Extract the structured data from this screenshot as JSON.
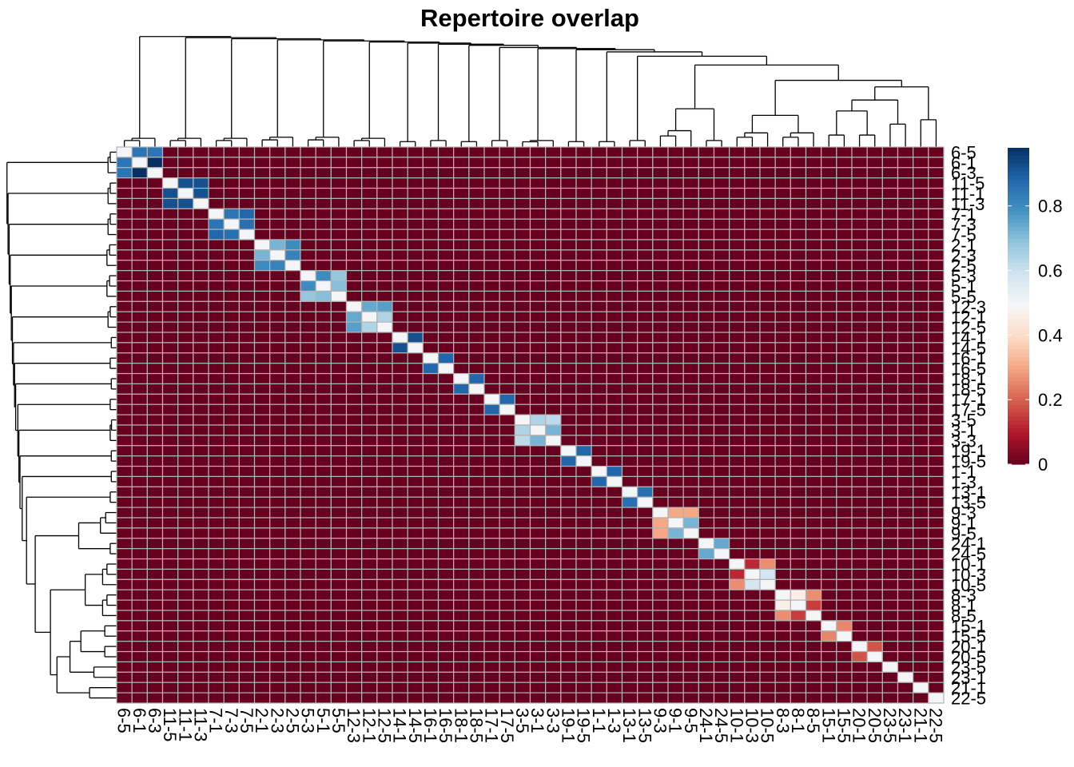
{
  "chart_data": {
    "type": "heatmap",
    "title": "Repertoire overlap",
    "row_labels": [
      "6-5",
      "6-1",
      "6-3",
      "11-5",
      "11-1",
      "11-3",
      "7-1",
      "7-3",
      "7-5",
      "2-1",
      "2-3",
      "2-5",
      "5-3",
      "5-1",
      "5-5",
      "12-3",
      "12-1",
      "12-5",
      "14-1",
      "14-5",
      "16-1",
      "16-5",
      "18-1",
      "18-5",
      "17-1",
      "17-5",
      "3-5",
      "3-1",
      "3-3",
      "19-1",
      "19-5",
      "1-1",
      "1-3",
      "13-1",
      "13-5",
      "9-3",
      "9-1",
      "9-5",
      "24-1",
      "24-5",
      "10-1",
      "10-3",
      "10-5",
      "8-3",
      "8-1",
      "8-5",
      "15-1",
      "15-5",
      "20-1",
      "20-5",
      "23-5",
      "23-1",
      "21-1",
      "22-5"
    ],
    "col_labels": [
      "6-5",
      "6-1",
      "6-3",
      "11-5",
      "11-1",
      "11-3",
      "7-1",
      "7-3",
      "7-5",
      "2-1",
      "2-3",
      "2-5",
      "5-3",
      "5-1",
      "5-5",
      "12-3",
      "12-1",
      "12-5",
      "14-1",
      "14-5",
      "16-1",
      "16-5",
      "18-1",
      "18-5",
      "17-1",
      "17-5",
      "3-5",
      "3-1",
      "3-3",
      "19-1",
      "19-5",
      "1-1",
      "1-3",
      "13-1",
      "13-5",
      "9-3",
      "9-1",
      "9-5",
      "24-1",
      "24-5",
      "10-1",
      "10-3",
      "10-5",
      "8-3",
      "8-1",
      "8-5",
      "15-1",
      "15-5",
      "20-1",
      "20-5",
      "23-5",
      "23-1",
      "21-1",
      "22-5"
    ],
    "blocks": [
      {
        "start": 0,
        "values": [
          [
            0.5,
            0.85,
            0.85
          ],
          [
            0.85,
            0.5,
            0.98
          ],
          [
            0.85,
            0.98,
            0.5
          ]
        ]
      },
      {
        "start": 3,
        "values": [
          [
            0.5,
            0.92,
            0.92
          ],
          [
            0.92,
            0.5,
            0.92
          ],
          [
            0.92,
            0.92,
            0.5
          ]
        ]
      },
      {
        "start": 6,
        "values": [
          [
            0.5,
            0.85,
            0.88
          ],
          [
            0.85,
            0.5,
            0.86
          ],
          [
            0.88,
            0.86,
            0.5
          ]
        ]
      },
      {
        "start": 9,
        "values": [
          [
            0.5,
            0.72,
            0.8
          ],
          [
            0.72,
            0.5,
            0.82
          ],
          [
            0.8,
            0.82,
            0.5
          ]
        ]
      },
      {
        "start": 12,
        "values": [
          [
            0.5,
            0.8,
            0.68
          ],
          [
            0.8,
            0.5,
            0.7
          ],
          [
            0.68,
            0.7,
            0.5
          ]
        ]
      },
      {
        "start": 15,
        "values": [
          [
            0.5,
            0.74,
            0.76
          ],
          [
            0.74,
            0.5,
            0.64
          ],
          [
            0.76,
            0.64,
            0.5
          ]
        ]
      },
      {
        "start": 18,
        "values": [
          [
            0.5,
            0.92
          ],
          [
            0.92,
            0.5
          ]
        ]
      },
      {
        "start": 20,
        "values": [
          [
            0.5,
            0.88
          ],
          [
            0.88,
            0.5
          ]
        ]
      },
      {
        "start": 22,
        "values": [
          [
            0.5,
            0.88
          ],
          [
            0.88,
            0.5
          ]
        ]
      },
      {
        "start": 24,
        "values": [
          [
            0.5,
            0.88
          ],
          [
            0.88,
            0.5
          ]
        ]
      },
      {
        "start": 26,
        "values": [
          [
            0.5,
            0.64,
            0.62
          ],
          [
            0.64,
            0.5,
            0.72
          ],
          [
            0.62,
            0.72,
            0.5
          ]
        ]
      },
      {
        "start": 29,
        "values": [
          [
            0.5,
            0.88
          ],
          [
            0.88,
            0.5
          ]
        ]
      },
      {
        "start": 31,
        "values": [
          [
            0.5,
            0.88
          ],
          [
            0.88,
            0.5
          ]
        ]
      },
      {
        "start": 33,
        "values": [
          [
            0.5,
            0.86
          ],
          [
            0.86,
            0.5
          ]
        ]
      },
      {
        "start": 35,
        "values": [
          [
            0.5,
            0.3,
            0.3
          ],
          [
            0.3,
            0.5,
            0.72
          ],
          [
            0.3,
            0.72,
            0.5
          ]
        ]
      },
      {
        "start": 38,
        "values": [
          [
            0.5,
            0.74
          ],
          [
            0.74,
            0.5
          ]
        ]
      },
      {
        "start": 40,
        "values": [
          [
            0.5,
            0.12,
            0.26
          ],
          [
            0.12,
            0.5,
            0.58
          ],
          [
            0.26,
            0.58,
            0.5
          ]
        ]
      },
      {
        "start": 43,
        "values": [
          [
            0.5,
            0.46,
            0.26
          ],
          [
            0.46,
            0.5,
            0.15
          ],
          [
            0.26,
            0.15,
            0.5
          ]
        ]
      },
      {
        "start": 46,
        "values": [
          [
            0.5,
            0.25
          ],
          [
            0.25,
            0.5
          ]
        ]
      },
      {
        "start": 48,
        "values": [
          [
            0.5,
            0.18
          ],
          [
            0.18,
            0.5
          ]
        ]
      },
      {
        "start": 50,
        "values": [
          [
            0.5
          ]
        ]
      },
      {
        "start": 51,
        "values": [
          [
            0.5
          ]
        ]
      },
      {
        "start": 52,
        "values": [
          [
            0.5
          ]
        ]
      },
      {
        "start": 53,
        "values": [
          [
            0.5
          ]
        ]
      }
    ],
    "default_value": 0,
    "color_scale": {
      "min": 0,
      "max": 0.98,
      "ticks": [
        0,
        0.2,
        0.4,
        0.6,
        0.8
      ],
      "colors": [
        "#67001f",
        "#b2182b",
        "#d6604d",
        "#f4a582",
        "#fddbc7",
        "#f7f7f7",
        "#d1e5f0",
        "#92c5de",
        "#4393c3",
        "#2166ac",
        "#053061"
      ]
    },
    "grid_color": "#b3b3b3",
    "dendrograms": "rows-left, columns-top"
  }
}
